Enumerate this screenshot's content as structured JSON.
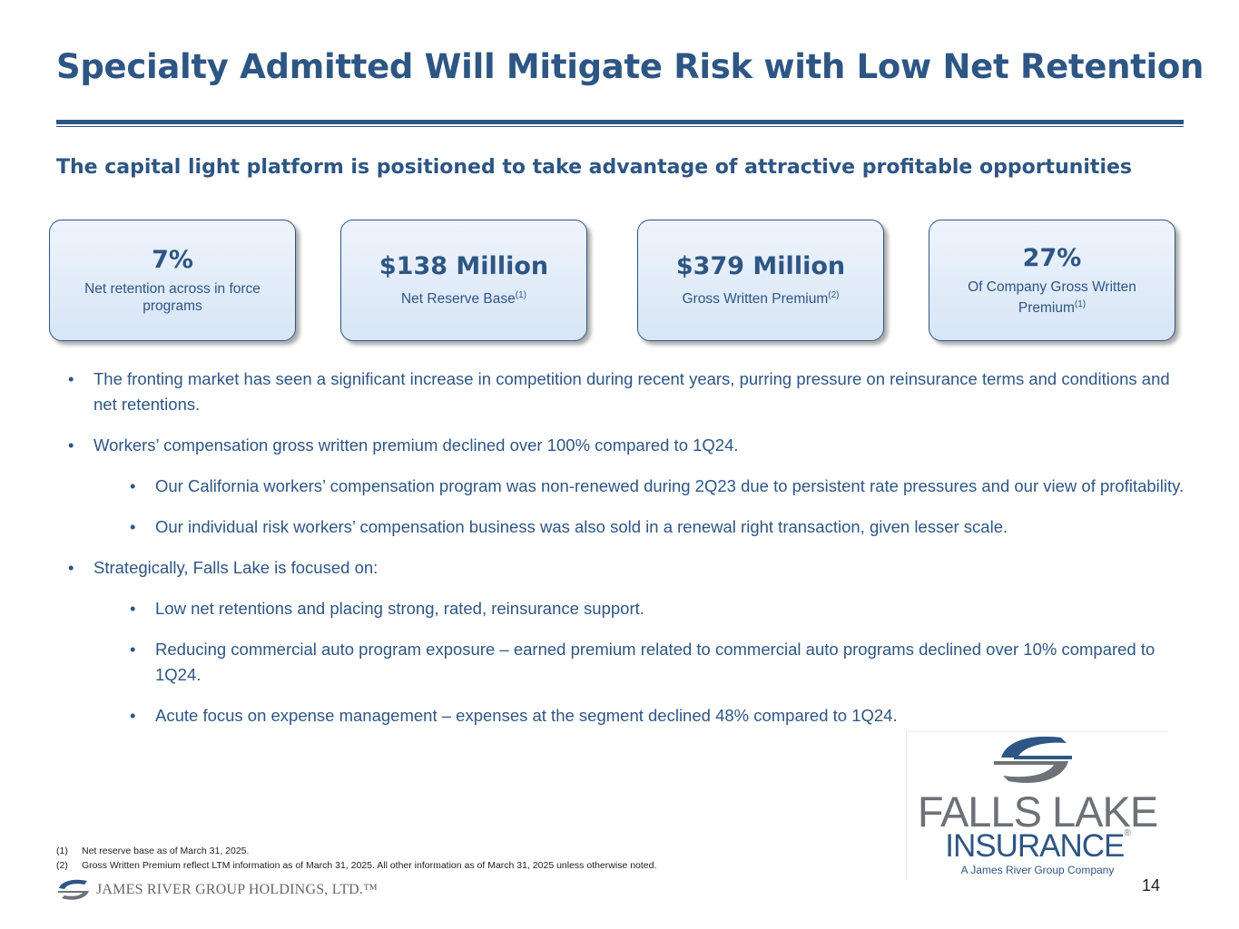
{
  "slide": {
    "title": "Specialty Admitted Will Mitigate Risk with Low Net Retention",
    "subtitle": "The capital light platform is positioned to take advantage of attractive profitable opportunities",
    "page_number": "14"
  },
  "stats": [
    {
      "value": "7%",
      "label": "Net retention across in force programs",
      "sup": ""
    },
    {
      "value": "$138 Million",
      "label": "Net Reserve Base",
      "sup": "(1)"
    },
    {
      "value": "$379 Million",
      "label": "Gross Written Premium",
      "sup": "(2)"
    },
    {
      "value": "27%",
      "label": "Of Company Gross Written Premium",
      "sup": "(1)"
    }
  ],
  "bullets": [
    {
      "level": 1,
      "text": "The fronting market has seen a significant increase in competition during recent years, purring pressure on reinsurance terms and conditions and net retentions."
    },
    {
      "level": 1,
      "text": "Workers’ compensation gross written premium declined over 100% compared to 1Q24."
    },
    {
      "level": 2,
      "text": "Our California workers’ compensation program was non-renewed during 2Q23 due to persistent rate pressures and our view of profitability."
    },
    {
      "level": 2,
      "text": "Our individual risk workers’ compensation business was also sold in a renewal right transaction, given lesser scale."
    },
    {
      "level": 1,
      "text": "Strategically, Falls Lake is focused on:"
    },
    {
      "level": 2,
      "text": "Low net retentions and placing strong, rated, reinsurance support."
    },
    {
      "level": 2,
      "text": "Reducing commercial auto program exposure – earned premium related to commercial auto programs declined over 10% compared to 1Q24."
    },
    {
      "level": 2,
      "text": "Acute focus on expense management – expenses at the segment declined 48% compared to 1Q24."
    }
  ],
  "footnotes": [
    {
      "num": "(1)",
      "text": "Net reserve base as of March 31, 2025."
    },
    {
      "num": "(2)",
      "text": "Gross Written Premium reflect LTM information as of March 31, 2025. All other information as of March 31, 2025 unless otherwise noted."
    }
  ],
  "logos": {
    "james_river": {
      "icon": "james-river-swoosh-icon",
      "text": "JAMES RIVER GROUP HOLDINGS, LTD.™"
    },
    "falls_lake": {
      "icon": "falls-lake-swoosh-icon",
      "line1": "FALLS LAKE",
      "line2": "INSURANCE",
      "reg": "®",
      "tagline": "A James River Group Company"
    }
  },
  "colors": {
    "navy": "#2E5684",
    "gray": "#6D7278",
    "card_fill": "#DCE8F7"
  }
}
